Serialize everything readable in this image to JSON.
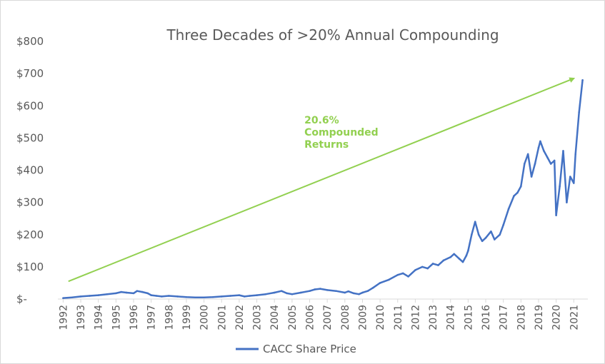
{
  "chart_data": {
    "type": "line",
    "title": "Three Decades of >20% Annual Compounding",
    "xlabel": "",
    "ylabel": "",
    "ylim": [
      0,
      800
    ],
    "y_ticks": [
      "$-",
      "$100",
      "$200",
      "$300",
      "$400",
      "$500",
      "$600",
      "$700",
      "$800"
    ],
    "x_ticks": [
      "1992",
      "1993",
      "1994",
      "1995",
      "1996",
      "1997",
      "1998",
      "1999",
      "2000",
      "2001",
      "2002",
      "2003",
      "2004",
      "2005",
      "2006",
      "2007",
      "2008",
      "2009",
      "2010",
      "2011",
      "2012",
      "2013",
      "2014",
      "2015",
      "2016",
      "2017",
      "2018",
      "2019",
      "2020",
      "2021"
    ],
    "grid": false,
    "legend_position": "bottom",
    "colors": {
      "series": "#4472c4",
      "trend": "#92d050",
      "text": "#595959",
      "axis": "#d9d9d9"
    },
    "series": [
      {
        "name": "CACC Share Price",
        "x": [
          1992.0,
          1992.5,
          1993.0,
          1993.5,
          1994.0,
          1994.5,
          1995.0,
          1995.3,
          1995.6,
          1996.0,
          1996.2,
          1996.5,
          1996.8,
          1997.0,
          1997.3,
          1997.6,
          1998.0,
          1998.5,
          1999.0,
          1999.5,
          2000.0,
          2000.5,
          2001.0,
          2001.5,
          2002.0,
          2002.3,
          2002.6,
          2003.0,
          2003.5,
          2004.0,
          2004.4,
          2004.7,
          2005.0,
          2005.5,
          2006.0,
          2006.3,
          2006.6,
          2007.0,
          2007.5,
          2008.0,
          2008.2,
          2008.5,
          2008.8,
          2009.0,
          2009.3,
          2009.6,
          2010.0,
          2010.5,
          2011.0,
          2011.3,
          2011.6,
          2012.0,
          2012.4,
          2012.7,
          2013.0,
          2013.3,
          2013.6,
          2014.0,
          2014.2,
          2014.5,
          2014.7,
          2014.9,
          2015.0,
          2015.2,
          2015.4,
          2015.6,
          2015.8,
          2016.0,
          2016.3,
          2016.5,
          2016.8,
          2017.0,
          2017.3,
          2017.6,
          2017.8,
          2018.0,
          2018.2,
          2018.4,
          2018.6,
          2018.8,
          2019.0,
          2019.1,
          2019.3,
          2019.5,
          2019.7,
          2019.9,
          2020.0,
          2020.2,
          2020.4,
          2020.6,
          2020.8,
          2021.0,
          2021.1,
          2021.3,
          2021.5
        ],
        "values": [
          3,
          5,
          8,
          10,
          12,
          15,
          18,
          22,
          20,
          18,
          25,
          22,
          18,
          12,
          10,
          8,
          10,
          8,
          6,
          5,
          5,
          6,
          8,
          10,
          12,
          8,
          10,
          12,
          15,
          20,
          25,
          18,
          15,
          20,
          25,
          30,
          32,
          28,
          25,
          20,
          24,
          18,
          15,
          20,
          25,
          35,
          50,
          60,
          75,
          80,
          70,
          90,
          100,
          95,
          110,
          105,
          120,
          130,
          140,
          125,
          115,
          135,
          150,
          200,
          240,
          200,
          180,
          190,
          210,
          185,
          200,
          230,
          280,
          320,
          330,
          350,
          420,
          450,
          380,
          420,
          470,
          490,
          460,
          440,
          420,
          430,
          260,
          350,
          460,
          300,
          380,
          360,
          450,
          580,
          680
        ]
      }
    ],
    "trend_line": {
      "x": [
        1992.3,
        2021.0
      ],
      "y": [
        55,
        685
      ]
    },
    "annotations": [
      {
        "lines": [
          "20.6%",
          "Compounded",
          "Returns"
        ],
        "x": 2005.7,
        "y": 545,
        "color": "#92d050"
      }
    ]
  }
}
